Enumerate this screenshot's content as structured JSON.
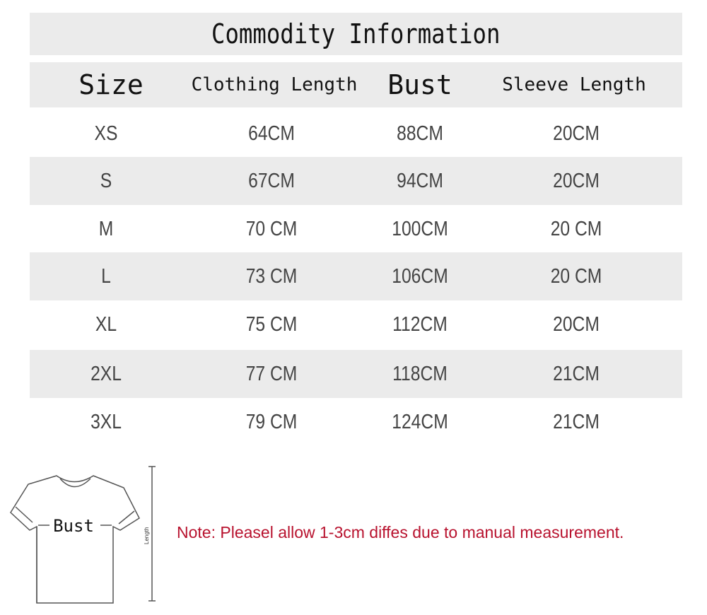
{
  "title": "Commodity Information",
  "columns": [
    "Size",
    "Clothing Length",
    "Bust",
    "Sleeve Length"
  ],
  "rows": [
    {
      "size": "XS",
      "length": "64CM",
      "bust": "88CM",
      "sleeve": "20CM"
    },
    {
      "size": "S",
      "length": "67CM",
      "bust": "94CM",
      "sleeve": "20CM"
    },
    {
      "size": "M",
      "length": "70 CM",
      "bust": "100CM",
      "sleeve": "20 CM"
    },
    {
      "size": "L",
      "length": "73 CM",
      "bust": "106CM",
      "sleeve": "20 CM"
    },
    {
      "size": "XL",
      "length": "75 CM",
      "bust": "112CM",
      "sleeve": "20CM"
    },
    {
      "size": "2XL",
      "length": "77 CM",
      "bust": "118CM",
      "sleeve": "21CM"
    },
    {
      "size": "3XL",
      "length": "79 CM",
      "bust": "124CM",
      "sleeve": "21CM"
    }
  ],
  "diagram": {
    "bust_label": "Bust",
    "length_label": "Length"
  },
  "note": "Note: Pleasel allow 1-3cm diffes due to manual measurement.",
  "colors": {
    "band": "#ebebeb",
    "note": "#b8122e"
  }
}
